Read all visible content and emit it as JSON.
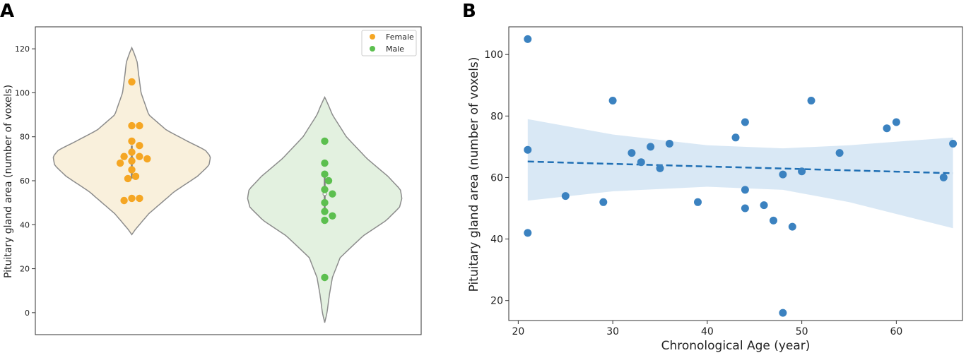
{
  "chart_data": [
    {
      "panel": "A",
      "type": "violin",
      "xlabel": "",
      "ylabel": "Pituitary gland area (number of voxels)",
      "ylim": [
        -10,
        130
      ],
      "yticks": [
        0,
        20,
        40,
        60,
        80,
        100,
        120
      ],
      "legend": {
        "placement": "top-right",
        "entries": [
          {
            "name": "Female",
            "color": "#f5a623"
          },
          {
            "name": "Male",
            "color": "#5cbf4f"
          }
        ]
      },
      "groups": [
        {
          "name": "Female",
          "fill": "#f9f0dc",
          "point_color": "#f5a623",
          "density_range": [
            35.5,
            120.5
          ],
          "density_profile": [
            [
              35.5,
              0
            ],
            [
              38,
              0.05
            ],
            [
              45,
              0.22
            ],
            [
              55,
              0.55
            ],
            [
              62,
              0.85
            ],
            [
              67,
              1.0
            ],
            [
              71,
              1.02
            ],
            [
              74,
              0.95
            ],
            [
              78,
              0.72
            ],
            [
              83,
              0.45
            ],
            [
              90,
              0.22
            ],
            [
              100,
              0.12
            ],
            [
              108,
              0.09
            ],
            [
              114,
              0.07
            ],
            [
              118,
              0.03
            ],
            [
              120.5,
              0
            ]
          ],
          "median": 70,
          "q1": 61,
          "q3": 76,
          "values": [
            105,
            85,
            85,
            78,
            76,
            73,
            71,
            71,
            70,
            69,
            68,
            65,
            62,
            61,
            52,
            52,
            51
          ]
        },
        {
          "name": "Male",
          "fill": "#e3f1e0",
          "point_color": "#5cbf4f",
          "density_range": [
            -4.5,
            98
          ],
          "density_profile": [
            [
              -4.5,
              0
            ],
            [
              0,
              0.03
            ],
            [
              8,
              0.06
            ],
            [
              16,
              0.1
            ],
            [
              25,
              0.2
            ],
            [
              35,
              0.5
            ],
            [
              42,
              0.8
            ],
            [
              48,
              0.97
            ],
            [
              52,
              1.0
            ],
            [
              56,
              0.98
            ],
            [
              62,
              0.82
            ],
            [
              70,
              0.55
            ],
            [
              80,
              0.28
            ],
            [
              90,
              0.1
            ],
            [
              95,
              0.04
            ],
            [
              98,
              0
            ]
          ],
          "median": 54,
          "q1": 46,
          "q3": 63,
          "values": [
            78,
            68,
            63,
            60,
            56,
            54,
            50,
            46,
            44,
            42,
            16
          ]
        }
      ]
    },
    {
      "panel": "B",
      "type": "scatter",
      "xlabel": "Chronological Age (year)",
      "ylabel": "Pituitary gland area (number of voxels)",
      "xlim": [
        19,
        67
      ],
      "ylim": [
        13.5,
        109
      ],
      "xticks": [
        20,
        30,
        40,
        50,
        60
      ],
      "yticks": [
        20,
        40,
        60,
        80,
        100
      ],
      "point_color": "#3b82c0",
      "points": [
        [
          21,
          105
        ],
        [
          21,
          69
        ],
        [
          21,
          42
        ],
        [
          25,
          54
        ],
        [
          29,
          52
        ],
        [
          30,
          85
        ],
        [
          32,
          68
        ],
        [
          33,
          65
        ],
        [
          34,
          70
        ],
        [
          35,
          63
        ],
        [
          36,
          71
        ],
        [
          39,
          52
        ],
        [
          43,
          73
        ],
        [
          44,
          78
        ],
        [
          44,
          56
        ],
        [
          44,
          50
        ],
        [
          46,
          51
        ],
        [
          47,
          46
        ],
        [
          48,
          61
        ],
        [
          48,
          16
        ],
        [
          49,
          44
        ],
        [
          50,
          62
        ],
        [
          51,
          85
        ],
        [
          54,
          68
        ],
        [
          59,
          76
        ],
        [
          60,
          78
        ],
        [
          65,
          60
        ],
        [
          66,
          71
        ]
      ],
      "regression": {
        "x": [
          21,
          66
        ],
        "y": [
          65.2,
          61.4
        ],
        "line_color": "#1f6fb4",
        "ci_color": "#cfe2f3",
        "ci_upper": [
          [
            21,
            79
          ],
          [
            30,
            74
          ],
          [
            40,
            70.5
          ],
          [
            48,
            69.5
          ],
          [
            55,
            70.5
          ],
          [
            66,
            73
          ]
        ],
        "ci_lower": [
          [
            21,
            52.5
          ],
          [
            30,
            55.5
          ],
          [
            40,
            57
          ],
          [
            48,
            56
          ],
          [
            55,
            52
          ],
          [
            66,
            43.5
          ]
        ]
      }
    }
  ]
}
